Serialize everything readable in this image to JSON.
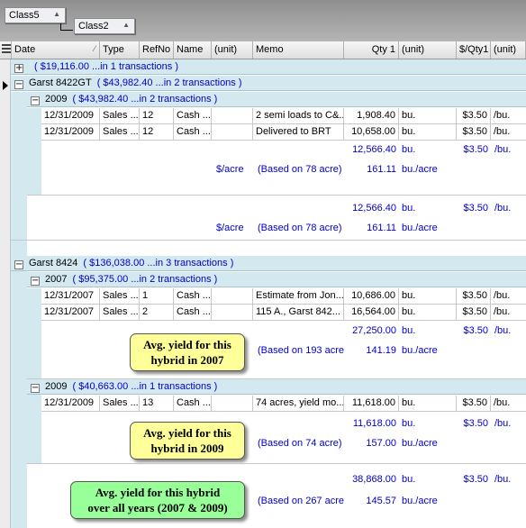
{
  "group_panel": {
    "chips": [
      {
        "label": "Class5",
        "sort_icon": "sort-ascending-icon"
      },
      {
        "label": "Class2",
        "sort_icon": "sort-ascending-icon"
      }
    ]
  },
  "columns": [
    "Date",
    "Type",
    "RefNo",
    "Name",
    "(unit)",
    "Memo",
    "Qty 1",
    "(unit)",
    "$/Qty1",
    "(unit)"
  ],
  "groups": {
    "g_top": {
      "expander": "+",
      "sum": "( $19,116.00  ...in 1 transactions )"
    },
    "garst_8422gt": {
      "title": "Garst 8422GT",
      "expander": "−",
      "sum": "( $43,982.40  ...in 2 transactions )",
      "sub_2009": {
        "title": "2009",
        "expander": "−",
        "sum": "( $43,982.40  ...in 2 transactions )",
        "rows": [
          {
            "date": "12/31/2009",
            "type": "Sales ...",
            "refno": "12",
            "name": "Cash ...",
            "unit": "",
            "memo": "2 semi loads to C&...",
            "qty": "1,908.40",
            "qty_unit": "bu.",
            "price": "$3.50",
            "price_unit": "/bu."
          },
          {
            "date": "12/31/2009",
            "type": "Sales ...",
            "refno": "12",
            "name": "Cash ...",
            "unit": "",
            "memo": "Delivered to BRT",
            "qty": "10,658.00",
            "qty_unit": "bu.",
            "price": "$3.50",
            "price_unit": "/bu."
          }
        ],
        "summary": {
          "qty": "12,566.40",
          "qty_unit": "bu.",
          "price": "$3.50",
          "price_unit": "/bu.",
          "per_label": "$/acre",
          "based_on": "(Based on 78 acre)",
          "per_value": "161.11",
          "per_unit": "bu./acre"
        }
      },
      "summary": {
        "qty": "12,566.40",
        "qty_unit": "bu.",
        "price": "$3.50",
        "price_unit": "/bu.",
        "per_label": "$/acre",
        "based_on": "(Based on 78 acre)",
        "per_value": "161.11",
        "per_unit": "bu./acre"
      }
    },
    "garst_8424": {
      "title": "Garst 8424",
      "expander": "−",
      "sum": "( $136,038.00  ...in 3 transactions )",
      "sub_2007": {
        "title": "2007",
        "expander": "−",
        "sum": "( $95,375.00  ...in 2 transactions )",
        "rows": [
          {
            "date": "12/31/2007",
            "type": "Sales ...",
            "refno": "1",
            "name": "Cash ...",
            "unit": "",
            "memo": "Estimate from Jon...",
            "qty": "10,686.00",
            "qty_unit": "bu.",
            "price": "$3.50",
            "price_unit": "/bu."
          },
          {
            "date": "12/31/2007",
            "type": "Sales ...",
            "refno": "2",
            "name": "Cash ...",
            "unit": "",
            "memo": "115 A., Garst 842...",
            "qty": "16,564.00",
            "qty_unit": "bu.",
            "price": "$3.50",
            "price_unit": "/bu."
          }
        ],
        "summary": {
          "qty": "27,250.00",
          "qty_unit": "bu.",
          "price": "$3.50",
          "price_unit": "/bu.",
          "based_on": "(Based on 193 acre",
          "per_value": "141.19",
          "per_unit": "bu./acre"
        }
      },
      "sub_2009": {
        "title": "2009",
        "expander": "−",
        "sum": "( $40,663.00  ...in 1 transactions )",
        "rows": [
          {
            "date": "12/31/2009",
            "type": "Sales ...",
            "refno": "13",
            "name": "Cash ...",
            "unit": "",
            "memo": "74 acres, yield mo...",
            "qty": "11,618.00",
            "qty_unit": "bu.",
            "price": "$3.50",
            "price_unit": "/bu."
          }
        ],
        "summary": {
          "qty": "11,618.00",
          "qty_unit": "bu.",
          "price": "$3.50",
          "price_unit": "/bu.",
          "based_on": "(Based on 74 acre)",
          "per_value": "157.00",
          "per_unit": "bu./acre"
        }
      },
      "summary": {
        "qty": "38,868.00",
        "qty_unit": "bu.",
        "price": "$3.50",
        "price_unit": "/bu.",
        "based_on": "(Based on 267 acre",
        "per_value": "145.57",
        "per_unit": "bu./acre"
      }
    }
  },
  "callouts": {
    "c2007": {
      "line1": "Avg. yield for this",
      "line2": "hybrid in 2007"
    },
    "c2009": {
      "line1": "Avg. yield for this",
      "line2": "hybrid in 2009"
    },
    "call": {
      "line1": "Avg. yield for this hybrid",
      "line2": "over all years (2007 & 2009)"
    }
  },
  "colors": {
    "summary_text": "#0000c8",
    "group_band": "#d4e8f0",
    "callout_yellow": "#ffff99",
    "callout_green": "#99ff99"
  }
}
